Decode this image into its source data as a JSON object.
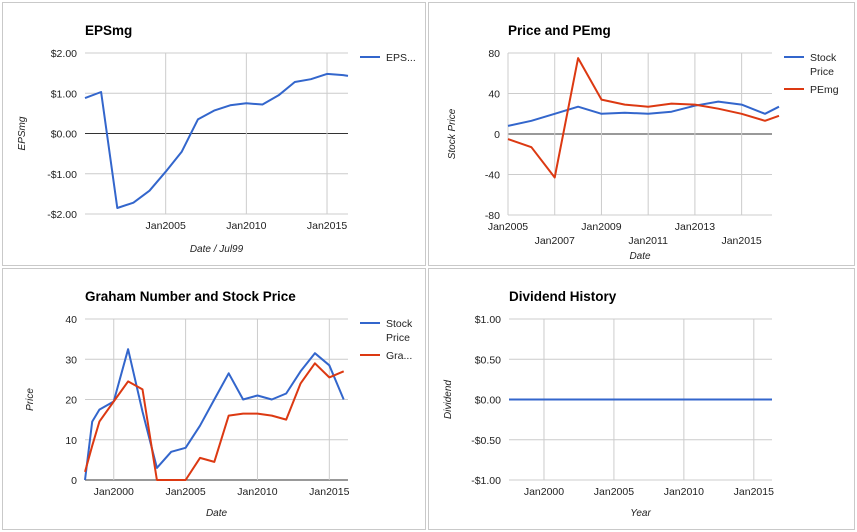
{
  "chart_data": [
    {
      "type": "line",
      "title": "EPSmg",
      "xlabel": "Date / Jul99",
      "ylabel": "EPSmg",
      "xlim": [
        2000.0,
        2016.3
      ],
      "ylim": [
        -2,
        2
      ],
      "x_ticks": [
        {
          "v": 2005,
          "label": "Jan2005",
          "row": 0
        },
        {
          "v": 2010,
          "label": "Jan2010",
          "row": 0
        },
        {
          "v": 2015,
          "label": "Jan2015",
          "row": 0
        }
      ],
      "y_ticks": [
        {
          "v": 2,
          "label": "$2.00"
        },
        {
          "v": 1,
          "label": "$1.00"
        },
        {
          "v": 0,
          "label": "$0.00"
        },
        {
          "v": -1,
          "label": "-$1.00"
        },
        {
          "v": -2,
          "label": "-$2.00"
        }
      ],
      "legend_position": "right",
      "series": [
        {
          "name": "EPS...",
          "color": "#3366cc",
          "x": [
            2000.0,
            2001.0,
            2002.0,
            2003.0,
            2004.0,
            2005.0,
            2006.0,
            2007.0,
            2008.0,
            2009.0,
            2010.0,
            2011.0,
            2012.0,
            2013.0,
            2014.0,
            2015.0,
            2016.0,
            2016.3
          ],
          "y": [
            0.88,
            1.03,
            -1.85,
            -1.72,
            -1.42,
            -0.95,
            -0.45,
            0.35,
            0.57,
            0.7,
            0.75,
            0.72,
            0.95,
            1.28,
            1.35,
            1.48,
            1.45,
            1.43
          ]
        }
      ]
    },
    {
      "type": "line",
      "title": "Price and PEmg",
      "xlabel": "Date",
      "ylabel": "Stock Price",
      "xlim": [
        2005.0,
        2016.3
      ],
      "ylim": [
        -80,
        80
      ],
      "x_ticks": [
        {
          "v": 2005,
          "label": "Jan2005",
          "row": 0
        },
        {
          "v": 2007,
          "label": "Jan2007",
          "row": 1
        },
        {
          "v": 2009,
          "label": "Jan2009",
          "row": 0
        },
        {
          "v": 2011,
          "label": "Jan2011",
          "row": 1
        },
        {
          "v": 2013,
          "label": "Jan2013",
          "row": 0
        },
        {
          "v": 2015,
          "label": "Jan2015",
          "row": 1
        }
      ],
      "y_ticks": [
        {
          "v": 80,
          "label": "80"
        },
        {
          "v": 40,
          "label": "40"
        },
        {
          "v": 0,
          "label": "0"
        },
        {
          "v": -40,
          "label": "-40"
        },
        {
          "v": -80,
          "label": "-80"
        }
      ],
      "legend_position": "right",
      "series": [
        {
          "name": "Stock Price",
          "color": "#3366cc",
          "x": [
            2005.0,
            2006.0,
            2007.0,
            2008.0,
            2009.0,
            2010.0,
            2011.0,
            2012.0,
            2013.0,
            2014.0,
            2015.0,
            2016.0,
            2016.6
          ],
          "y": [
            8,
            13,
            20,
            27,
            20,
            21,
            20,
            22,
            28,
            32,
            29,
            20,
            27
          ]
        },
        {
          "name": "PEmg",
          "color": "#dc3912",
          "x": [
            2005.0,
            2006.0,
            2007.0,
            2008.0,
            2009.0,
            2010.0,
            2011.0,
            2012.0,
            2013.0,
            2014.0,
            2015.0,
            2016.0,
            2016.6
          ],
          "y": [
            -5,
            -13,
            -43,
            75,
            34,
            29,
            27,
            30,
            29,
            25,
            20,
            13,
            18
          ]
        }
      ]
    },
    {
      "type": "line",
      "title": "Graham Number and Stock Price",
      "xlabel": "Date",
      "ylabel": "Price",
      "xlim": [
        1998.0,
        2016.3
      ],
      "ylim": [
        0,
        40
      ],
      "x_ticks": [
        {
          "v": 2000,
          "label": "Jan2000",
          "row": 0
        },
        {
          "v": 2005,
          "label": "Jan2005",
          "row": 0
        },
        {
          "v": 2010,
          "label": "Jan2010",
          "row": 0
        },
        {
          "v": 2015,
          "label": "Jan2015",
          "row": 0
        }
      ],
      "y_ticks": [
        {
          "v": 40,
          "label": "40"
        },
        {
          "v": 30,
          "label": "30"
        },
        {
          "v": 20,
          "label": "20"
        },
        {
          "v": 10,
          "label": "10"
        },
        {
          "v": 0,
          "label": "0"
        }
      ],
      "legend_position": "right",
      "series": [
        {
          "name": "Stock Price",
          "color": "#3366cc",
          "x": [
            1998.0,
            1998.5,
            1999.0,
            2000.0,
            2001.0,
            2002.0,
            2003.0,
            2004.0,
            2005.0,
            2006.0,
            2007.0,
            2008.0,
            2009.0,
            2010.0,
            2011.0,
            2012.0,
            2013.0,
            2014.0,
            2015.0,
            2016.0
          ],
          "y": [
            0,
            14.5,
            17.5,
            19.5,
            32.5,
            17,
            3,
            7,
            8,
            13.5,
            20,
            26.5,
            20,
            21,
            20,
            21.5,
            27,
            31.5,
            28.5,
            20
          ]
        },
        {
          "name": "Gra...",
          "color": "#dc3912",
          "x": [
            1998.0,
            1998.5,
            1999.0,
            2000.0,
            2001.0,
            2002.0,
            2003.0,
            2004.0,
            2005.0,
            2006.0,
            2007.0,
            2008.0,
            2009.0,
            2010.0,
            2011.0,
            2012.0,
            2013.0,
            2014.0,
            2015.0,
            2016.0
          ],
          "y": [
            2,
            8.5,
            14.5,
            19.5,
            24.5,
            22.5,
            0,
            0,
            0,
            5.5,
            4.5,
            16,
            16.5,
            16.5,
            16,
            15,
            24,
            29,
            25.5,
            27
          ]
        }
      ]
    },
    {
      "type": "line",
      "title": "Dividend History",
      "xlabel": "Year",
      "ylabel": "Dividend",
      "xlim": [
        1997.5,
        2016.3
      ],
      "ylim": [
        -1,
        1
      ],
      "x_ticks": [
        {
          "v": 2000,
          "label": "Jan2000",
          "row": 0
        },
        {
          "v": 2005,
          "label": "Jan2005",
          "row": 0
        },
        {
          "v": 2010,
          "label": "Jan2010",
          "row": 0
        },
        {
          "v": 2015,
          "label": "Jan2015",
          "row": 0
        }
      ],
      "y_ticks": [
        {
          "v": 1,
          "label": "$1.00"
        },
        {
          "v": 0.5,
          "label": "$0.50"
        },
        {
          "v": 0,
          "label": "$0.00"
        },
        {
          "v": -0.5,
          "label": "-$0.50"
        },
        {
          "v": -1,
          "label": "-$1.00"
        }
      ],
      "legend_position": "none",
      "series": [
        {
          "name": "",
          "color": "#3366cc",
          "x": [
            1997.5,
            2016.3
          ],
          "y": [
            0,
            0
          ]
        }
      ]
    }
  ]
}
